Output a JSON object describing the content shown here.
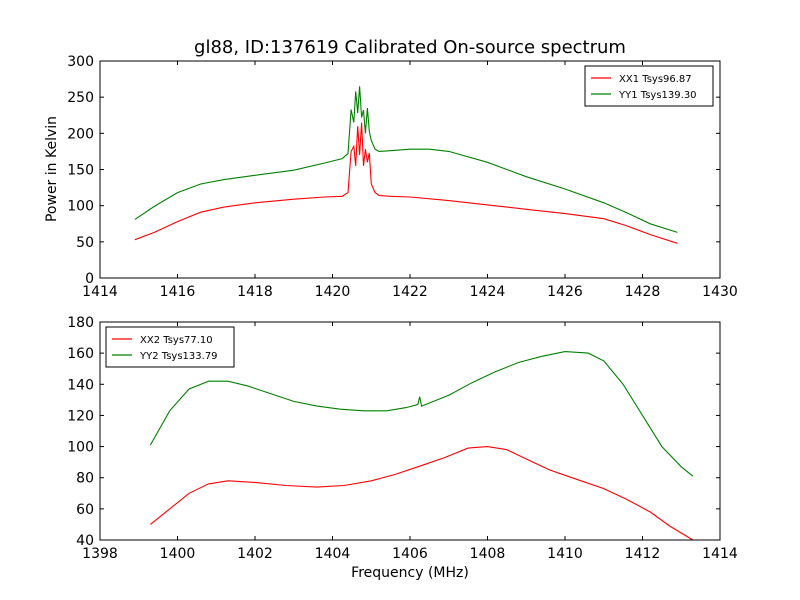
{
  "chart_data": [
    {
      "type": "line",
      "title": "gl88, ID:137619 Calibrated On-source spectrum",
      "xlabel": "",
      "ylabel": "Power in Kelvin",
      "xlim": [
        1414,
        1430
      ],
      "ylim": [
        0,
        300
      ],
      "xticks": [
        1414,
        1416,
        1418,
        1420,
        1422,
        1424,
        1426,
        1428,
        1430
      ],
      "yticks": [
        0,
        50,
        100,
        150,
        200,
        250,
        300
      ],
      "grid": false,
      "legend_position": "top-right",
      "series": [
        {
          "name": "XX1 Tsys96.87",
          "color": "#ff0000",
          "x": [
            1414.9,
            1415.4,
            1416.0,
            1416.6,
            1417.2,
            1418.0,
            1419.0,
            1419.8,
            1420.25,
            1420.4,
            1420.48,
            1420.55,
            1420.6,
            1420.65,
            1420.7,
            1420.75,
            1420.8,
            1420.85,
            1420.9,
            1420.95,
            1421.0,
            1421.1,
            1421.2,
            1421.5,
            1422.0,
            1423.0,
            1424.0,
            1425.0,
            1426.0,
            1427.0,
            1427.6,
            1428.2,
            1428.9
          ],
          "y": [
            53,
            63,
            78,
            91,
            98,
            104,
            109,
            112,
            113,
            118,
            175,
            182,
            155,
            210,
            170,
            215,
            155,
            178,
            160,
            173,
            130,
            118,
            114,
            113,
            112,
            107,
            101,
            95,
            89,
            82,
            72,
            60,
            48
          ]
        },
        {
          "name": "YY1 Tsys139.30",
          "color": "#008000",
          "x": [
            1414.9,
            1415.4,
            1416.0,
            1416.6,
            1417.2,
            1418.0,
            1419.0,
            1419.8,
            1420.25,
            1420.4,
            1420.48,
            1420.55,
            1420.6,
            1420.65,
            1420.7,
            1420.75,
            1420.8,
            1420.85,
            1420.9,
            1420.95,
            1421.0,
            1421.1,
            1421.2,
            1421.5,
            1422.0,
            1422.5,
            1423.0,
            1424.0,
            1425.0,
            1426.0,
            1427.0,
            1427.6,
            1428.2,
            1428.9
          ],
          "y": [
            81,
            99,
            118,
            130,
            136,
            142,
            149,
            159,
            165,
            172,
            233,
            215,
            258,
            228,
            265,
            222,
            232,
            200,
            235,
            203,
            190,
            178,
            175,
            176,
            178,
            178,
            175,
            160,
            140,
            123,
            104,
            90,
            75,
            63
          ]
        }
      ]
    },
    {
      "type": "line",
      "title": "",
      "xlabel": "Frequency (MHz)",
      "ylabel": "",
      "xlim": [
        1398,
        1414
      ],
      "ylim": [
        40,
        180
      ],
      "xticks": [
        1398,
        1400,
        1402,
        1404,
        1406,
        1408,
        1410,
        1412,
        1414
      ],
      "yticks": [
        40,
        60,
        80,
        100,
        120,
        140,
        160,
        180
      ],
      "grid": false,
      "legend_position": "top-left",
      "series": [
        {
          "name": "XX2 Tsys77.10",
          "color": "#ff0000",
          "x": [
            1399.3,
            1399.8,
            1400.3,
            1400.8,
            1401.3,
            1402.0,
            1402.8,
            1403.6,
            1404.3,
            1405.0,
            1405.6,
            1406.2,
            1406.9,
            1407.5,
            1408.0,
            1408.5,
            1409.0,
            1409.6,
            1410.3,
            1411.0,
            1411.6,
            1412.2,
            1412.7,
            1413.3
          ],
          "y": [
            50,
            60,
            70,
            76,
            78,
            77,
            75,
            74,
            75,
            78,
            82,
            87,
            93,
            99,
            100,
            98,
            92,
            85,
            79,
            73,
            66,
            58,
            49,
            40
          ]
        },
        {
          "name": "YY2 Tsys133.79",
          "color": "#008000",
          "x": [
            1399.3,
            1399.8,
            1400.3,
            1400.8,
            1401.3,
            1401.8,
            1402.4,
            1403.0,
            1403.6,
            1404.2,
            1404.8,
            1405.4,
            1405.9,
            1406.2,
            1406.25,
            1406.3,
            1406.5,
            1407.0,
            1407.6,
            1408.2,
            1408.8,
            1409.4,
            1410.0,
            1410.6,
            1411.0,
            1411.5,
            1412.0,
            1412.5,
            1413.0,
            1413.3
          ],
          "y": [
            101,
            123,
            137,
            142,
            142,
            139,
            134,
            129,
            126,
            124,
            123,
            123,
            125,
            127,
            132,
            126,
            128,
            133,
            141,
            148,
            154,
            158,
            161,
            160,
            155,
            140,
            120,
            100,
            87,
            81
          ]
        }
      ]
    }
  ]
}
